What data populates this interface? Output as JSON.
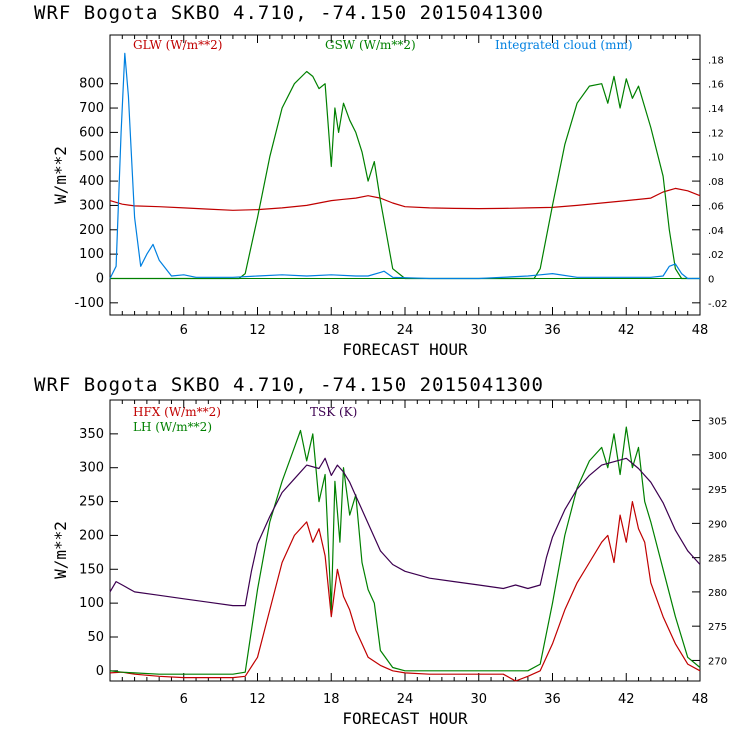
{
  "chart_data": [
    {
      "type": "line",
      "title": "WRF   Bogota SKBO     4.710, -74.150  2015041300",
      "xlabel": "FORECAST HOUR",
      "ylabel": "W/m**2",
      "xlim": [
        0,
        48
      ],
      "ylim": [
        -150,
        1000
      ],
      "y2lim": [
        -0.03,
        0.2
      ],
      "xticks": [
        6,
        12,
        18,
        24,
        30,
        36,
        42,
        48
      ],
      "yticks": [
        -100,
        0,
        100,
        200,
        300,
        400,
        500,
        600,
        700,
        800
      ],
      "y2ticks": [
        -0.02,
        0,
        0.02,
        0.04,
        0.06,
        0.08,
        0.1,
        0.12,
        0.14,
        0.16,
        0.18
      ],
      "y2ticklabels": [
        "-.02",
        "0",
        ".02",
        ".04",
        ".06",
        ".08",
        ".10",
        ".12",
        ".14",
        ".16",
        ".18"
      ],
      "series": [
        {
          "name": "GLW (W/m**2)",
          "color": "#c00000",
          "axis": "left",
          "x": [
            0,
            1,
            2,
            4,
            6,
            8,
            10,
            12,
            14,
            16,
            17,
            18,
            19,
            20,
            21,
            22,
            23,
            24,
            26,
            28,
            30,
            32,
            34,
            36,
            38,
            40,
            42,
            44,
            45,
            46,
            47,
            48
          ],
          "y": [
            320,
            305,
            298,
            295,
            290,
            285,
            280,
            283,
            290,
            300,
            310,
            320,
            325,
            330,
            340,
            330,
            310,
            295,
            290,
            288,
            287,
            288,
            290,
            292,
            300,
            310,
            320,
            330,
            355,
            370,
            360,
            340
          ]
        },
        {
          "name": "GSW (W/m**2)",
          "color": "#008000",
          "axis": "left",
          "x": [
            0,
            10,
            10.5,
            11,
            12,
            13,
            14,
            15,
            16,
            16.5,
            17,
            17.5,
            18,
            18.3,
            18.6,
            19,
            19.5,
            20,
            20.5,
            21,
            21.5,
            22,
            22.5,
            23,
            24,
            30,
            34,
            34.5,
            35,
            36,
            37,
            38,
            39,
            40,
            40.5,
            41,
            41.5,
            42,
            42.5,
            43,
            44,
            45,
            45.5,
            46,
            46.5,
            47,
            48
          ],
          "y": [
            0,
            0,
            0,
            20,
            250,
            500,
            700,
            800,
            850,
            830,
            780,
            800,
            460,
            700,
            600,
            720,
            650,
            600,
            520,
            400,
            480,
            320,
            180,
            40,
            0,
            0,
            0,
            0,
            40,
            300,
            550,
            720,
            790,
            800,
            720,
            830,
            700,
            820,
            740,
            790,
            620,
            420,
            200,
            40,
            0,
            0,
            0
          ]
        },
        {
          "name": "Integrated cloud (mm)",
          "color": "#0080e0",
          "axis": "right",
          "x": [
            0,
            0.5,
            0.9,
            1.2,
            1.5,
            2,
            2.5,
            3,
            3.5,
            4,
            5,
            6,
            7,
            10,
            12,
            14,
            16,
            18,
            20,
            21,
            22,
            22.3,
            23,
            26,
            30,
            34,
            35,
            36,
            38,
            42,
            44,
            45,
            45.5,
            46,
            46.5,
            47,
            48
          ],
          "y": [
            0,
            0.01,
            0.12,
            0.185,
            0.15,
            0.05,
            0.01,
            0.02,
            0.028,
            0.015,
            0.002,
            0.003,
            0.001,
            0.001,
            0.002,
            0.003,
            0.002,
            0.003,
            0.002,
            0.002,
            0.005,
            0.006,
            0.001,
            0,
            0,
            0.002,
            0.003,
            0.004,
            0.001,
            0.001,
            0.001,
            0.002,
            0.01,
            0.012,
            0.004,
            0,
            0
          ]
        }
      ]
    },
    {
      "type": "line",
      "title": "WRF   Bogota SKBO     4.710, -74.150  2015041300",
      "xlabel": "FORECAST HOUR",
      "ylabel": "W/m**2",
      "xlim": [
        0,
        48
      ],
      "ylim": [
        -15,
        400
      ],
      "y2lim": [
        267,
        308
      ],
      "xticks": [
        6,
        12,
        18,
        24,
        30,
        36,
        42,
        48
      ],
      "yticks": [
        0,
        50,
        100,
        150,
        200,
        250,
        300,
        350
      ],
      "y2ticks": [
        270,
        275,
        280,
        285,
        290,
        295,
        300,
        305
      ],
      "y2ticklabels": [
        "270",
        "275",
        "280",
        "285",
        "290",
        "295",
        "300",
        "305"
      ],
      "series": [
        {
          "name": "HFX (W/m**2)",
          "color": "#c00000",
          "axis": "left",
          "x": [
            0,
            1,
            2,
            4,
            6,
            8,
            10,
            11,
            12,
            13,
            14,
            15,
            16,
            16.5,
            17,
            17.5,
            18,
            18.5,
            19,
            19.5,
            20,
            20.5,
            21,
            22,
            23,
            24,
            26,
            28,
            30,
            32,
            33,
            34,
            35,
            36,
            37,
            38,
            39,
            40,
            40.5,
            41,
            41.5,
            42,
            42.5,
            43,
            43.5,
            44,
            45,
            46,
            47,
            48
          ],
          "y": [
            -3,
            -2,
            -5,
            -8,
            -10,
            -10,
            -10,
            -8,
            20,
            90,
            160,
            200,
            220,
            190,
            210,
            170,
            80,
            150,
            110,
            90,
            60,
            40,
            20,
            8,
            0,
            -3,
            -5,
            -5,
            -5,
            -5,
            -15,
            -8,
            0,
            40,
            90,
            130,
            160,
            190,
            200,
            160,
            230,
            190,
            250,
            210,
            190,
            130,
            80,
            40,
            10,
            0
          ]
        },
        {
          "name": "LH  (W/m**2)",
          "color": "#008000",
          "axis": "left",
          "x": [
            0,
            1,
            2,
            4,
            6,
            8,
            10,
            11,
            12,
            13,
            14,
            15,
            15.5,
            16,
            16.5,
            17,
            17.5,
            18,
            18.3,
            18.7,
            19,
            19.5,
            20,
            20.5,
            21,
            21.5,
            22,
            23,
            24,
            26,
            28,
            30,
            32,
            34,
            35,
            36,
            37,
            38,
            39,
            40,
            40.5,
            41,
            41.5,
            42,
            42.5,
            43,
            43.5,
            44,
            45,
            46,
            47,
            48
          ],
          "y": [
            0,
            -2,
            -3,
            -5,
            -5,
            -5,
            -5,
            -2,
            120,
            220,
            280,
            330,
            355,
            310,
            350,
            250,
            290,
            90,
            280,
            190,
            300,
            230,
            260,
            160,
            120,
            100,
            30,
            5,
            0,
            0,
            0,
            0,
            0,
            0,
            10,
            100,
            200,
            270,
            310,
            330,
            300,
            350,
            290,
            360,
            300,
            330,
            250,
            220,
            150,
            80,
            20,
            5
          ]
        },
        {
          "name": "TSK (K)",
          "color": "#3c0050",
          "axis": "right",
          "x": [
            0,
            0.5,
            1,
            2,
            4,
            6,
            8,
            10,
            11,
            11.5,
            12,
            13,
            14,
            15,
            16,
            17,
            17.5,
            18,
            18.5,
            19,
            19.5,
            20,
            20.5,
            21,
            22,
            23,
            24,
            26,
            28,
            30,
            32,
            33,
            34,
            35,
            35.5,
            36,
            37,
            38,
            39,
            40,
            41,
            42,
            43,
            44,
            45,
            46,
            47,
            48
          ],
          "y": [
            280,
            281.5,
            281,
            280,
            279.5,
            279,
            278.5,
            278,
            278,
            283,
            287,
            291,
            294.5,
            296.5,
            298.5,
            298,
            299.5,
            297,
            298.5,
            297.5,
            296,
            294,
            292,
            290,
            286,
            284,
            283,
            282,
            281.5,
            281,
            280.5,
            281,
            280.5,
            281,
            285,
            288,
            292,
            295,
            297,
            298.5,
            299,
            299.5,
            298,
            296,
            293,
            289,
            286,
            284
          ]
        }
      ]
    }
  ],
  "panels": [
    {
      "legend": [
        {
          "label": "GLW (W/m**2)",
          "color": "#c00000"
        },
        {
          "label": "GSW (W/m**2)",
          "color": "#008000"
        },
        {
          "label": "Integrated cloud (mm)",
          "color": "#0080e0"
        }
      ]
    },
    {
      "legend": [
        {
          "label": "HFX (W/m**2)",
          "color": "#c00000"
        },
        {
          "label": "LH  (W/m**2)",
          "color": "#008000"
        },
        {
          "label": "TSK (K)",
          "color": "#3c0050"
        }
      ]
    }
  ]
}
